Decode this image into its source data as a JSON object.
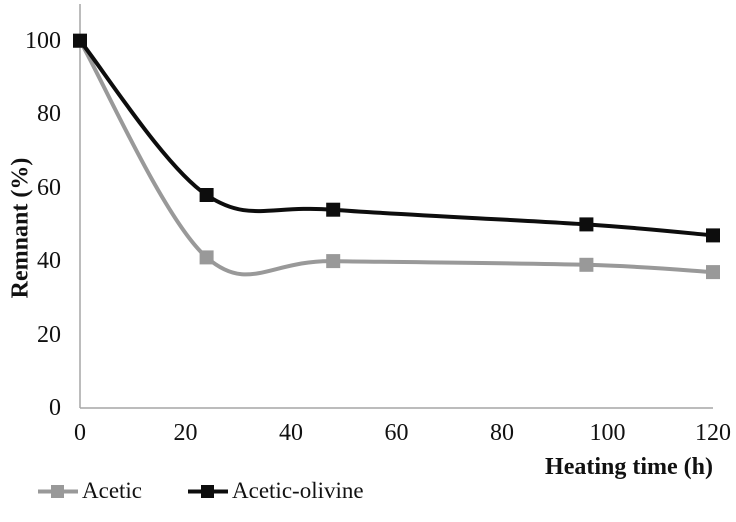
{
  "chart_data": {
    "type": "line",
    "title": "",
    "xlabel": "Heating time (h)",
    "ylabel": "Remnant (%)",
    "x": [
      0,
      24,
      48,
      96,
      120
    ],
    "series": [
      {
        "name": "Acetic",
        "color": "#999999",
        "marker": "square",
        "values": [
          100,
          41,
          40,
          39,
          37
        ]
      },
      {
        "name": "Acetic-olivine",
        "color": "#0d0d0d",
        "marker": "square",
        "values": [
          100,
          58,
          54,
          50,
          47
        ]
      }
    ],
    "xlim": [
      0,
      120
    ],
    "ylim": [
      0,
      110
    ],
    "x_ticks": [
      0,
      20,
      40,
      60,
      80,
      100,
      120
    ],
    "y_ticks": [
      0,
      20,
      40,
      60,
      80,
      100
    ],
    "grid": false,
    "smoothed": true,
    "line_width": 4,
    "marker_size": 14,
    "legend_position": "bottom-left",
    "axis_color": "#a6a6a6",
    "background_color": "#ffffff"
  }
}
